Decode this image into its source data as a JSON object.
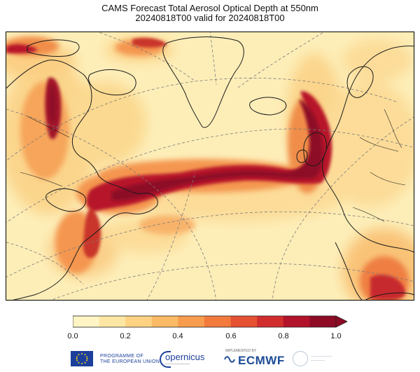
{
  "title_line1": "CAMS Forecast Total Aerosol Optical Depth at 550nm",
  "title_line2": "20240818T00 valid for 20240818T00",
  "colorbar": {
    "ticks": [
      "0.0",
      "0.2",
      "0.4",
      "0.6",
      "0.8",
      "1.0"
    ],
    "colors": [
      "#fff5c4",
      "#fde6a4",
      "#fdd283",
      "#fbba66",
      "#f89c4d",
      "#f27a3c",
      "#e65133",
      "#d22d2d",
      "#b3122b",
      "#8e0a25"
    ],
    "extend": "max"
  },
  "footer": {
    "eu_line1": "PROGRAMME OF",
    "eu_line2": "THE EUROPEAN UNION",
    "copernicus": "opernicus",
    "ecmwf_small": "IMPLEMENTED BY",
    "ecmwf": "ECMWF"
  },
  "map": {
    "variable": "total aerosol optical depth",
    "projection": "polar-stereographic north atlantic",
    "land_outline_color": "#1a1a1a",
    "graticule_style": "dashed"
  }
}
